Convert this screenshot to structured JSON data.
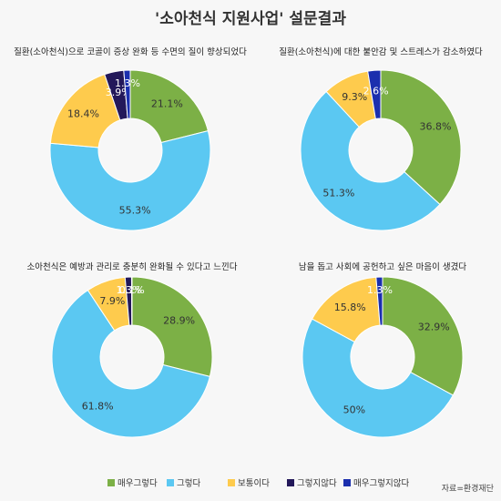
{
  "title": "'소아천식 지원사업' 설문결과",
  "source": "자료=환경재단",
  "colors": {
    "매우그렇다": "#7cb046",
    "그렇다": "#5bc8f2",
    "보통이다": "#fecb4d",
    "그렇지않다": "#23185a",
    "매우그렇지않다": "#1b2fae"
  },
  "legend": [
    "매우그렇다",
    "그렇다",
    "보통이다",
    "그렇지않다",
    "매우그렇지않다"
  ],
  "chart_data": [
    {
      "type": "pie",
      "title": "질환(소아천식)으로 코골이 증상 완화 등 수면의 질이 향상되었다",
      "categories": [
        "매우그렇다",
        "그렇다",
        "보통이다",
        "그렇지않다",
        "매우그렇지않다"
      ],
      "values": [
        21.1,
        55.3,
        18.4,
        3.9,
        1.3
      ],
      "labels": [
        "21.1%",
        "55.3%",
        "18.4%",
        "3.9%",
        "1.3%"
      ]
    },
    {
      "type": "pie",
      "title": "질환(소아천식)에 대한 불안감 및 스트레스가 감소하였다",
      "categories": [
        "매우그렇다",
        "그렇다",
        "보통이다",
        "그렇지않다",
        "매우그렇지않다"
      ],
      "values": [
        36.8,
        51.3,
        9.3,
        0,
        2.6
      ],
      "labels": [
        "36.8%",
        "51.3%",
        "9.3%",
        "",
        "2.6%"
      ]
    },
    {
      "type": "pie",
      "title": "소아천식은 예방과 관리로 충분히 완화될 수 있다고 느낀다",
      "categories": [
        "매우그렇다",
        "그렇다",
        "보통이다",
        "그렇지않다",
        "매우그렇지않다"
      ],
      "values": [
        28.9,
        61.8,
        7.9,
        1.3,
        0.1
      ],
      "labels": [
        "28.9%",
        "61.8%",
        "7.9%",
        "1.3%",
        "0.1%"
      ]
    },
    {
      "type": "pie",
      "title": "남을 돕고 사회에 공헌하고 싶은 마음이 생겼다",
      "categories": [
        "매우그렇다",
        "그렇다",
        "보통이다",
        "그렇지않다",
        "매우그렇지않다"
      ],
      "values": [
        32.9,
        50,
        15.8,
        0,
        1.3
      ],
      "labels": [
        "32.9%",
        "50%",
        "15.8%",
        "",
        "1.3%"
      ]
    }
  ]
}
